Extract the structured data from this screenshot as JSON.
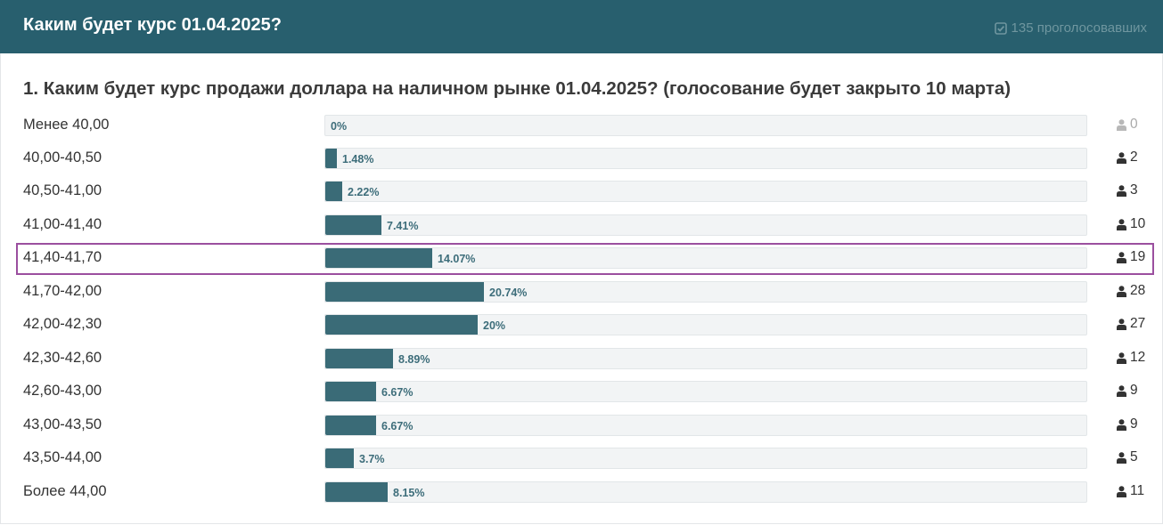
{
  "header": {
    "title": "Каким будет курс 01.04.2025?",
    "voters_label": "135 проголосовавших"
  },
  "question": {
    "title": "1. Каким будет курс продажи доллара на наличном рынке 01.04.2025? (голосование будет закрыто 10 марта)"
  },
  "options": [
    {
      "label": "Менее 40,00",
      "percent_label": "0%",
      "percent": 0,
      "votes": "0"
    },
    {
      "label": "40,00-40,50",
      "percent_label": "1.48%",
      "percent": 1.48,
      "votes": "2"
    },
    {
      "label": "40,50-41,00",
      "percent_label": "2.22%",
      "percent": 2.22,
      "votes": "3"
    },
    {
      "label": "41,00-41,40",
      "percent_label": "7.41%",
      "percent": 7.41,
      "votes": "10"
    },
    {
      "label": "41,40-41,70",
      "percent_label": "14.07%",
      "percent": 14.07,
      "votes": "19"
    },
    {
      "label": "41,70-42,00",
      "percent_label": "20.74%",
      "percent": 20.74,
      "votes": "28"
    },
    {
      "label": "42,00-42,30",
      "percent_label": "20%",
      "percent": 20,
      "votes": "27"
    },
    {
      "label": "42,30-42,60",
      "percent_label": "8.89%",
      "percent": 8.89,
      "votes": "12"
    },
    {
      "label": "42,60-43,00",
      "percent_label": "6.67%",
      "percent": 6.67,
      "votes": "9"
    },
    {
      "label": "43,00-43,50",
      "percent_label": "6.67%",
      "percent": 6.67,
      "votes": "9"
    },
    {
      "label": "43,50-44,00",
      "percent_label": "3.7%",
      "percent": 3.7,
      "votes": "5"
    },
    {
      "label": "Более 44,00",
      "percent_label": "8.15%",
      "percent": 8.15,
      "votes": "11"
    }
  ],
  "highlighted_option": "41,40-41,70",
  "colors": {
    "header_bg": "#285f6e",
    "bar_fill": "#3a6b77",
    "track_bg": "#f2f4f5",
    "highlight_border": "#9b4f9f"
  },
  "icons": {
    "voters": "check-square-icon",
    "count": "user-icon"
  }
}
